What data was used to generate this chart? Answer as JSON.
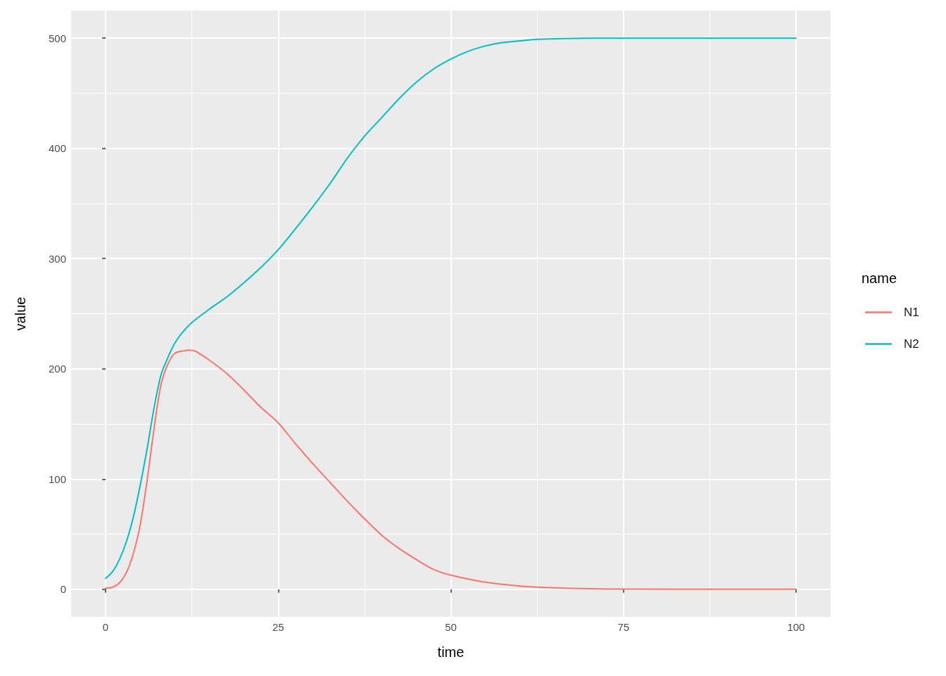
{
  "chart_data": {
    "type": "line",
    "xlabel": "time",
    "ylabel": "value",
    "legend_title": "name",
    "series": [
      {
        "name": "N1",
        "color": "#f8766d",
        "x": [
          0,
          1,
          2,
          3,
          4,
          5,
          6,
          7,
          8,
          9,
          10,
          11,
          12,
          13,
          15,
          17.5,
          20,
          22.5,
          25,
          27.5,
          30,
          32.5,
          35,
          37.5,
          40,
          42.5,
          45,
          47.5,
          50,
          55,
          60,
          65,
          70,
          75,
          87.5,
          100
        ],
        "values": [
          1,
          1.8,
          5.8,
          15,
          32,
          58,
          98,
          145,
          185,
          204,
          214,
          216,
          217,
          216,
          208,
          196,
          181,
          165,
          151,
          132,
          114,
          97,
          80,
          64,
          49,
          37,
          27,
          18,
          12.8,
          6.4,
          3,
          1.3,
          0.5,
          0.2,
          0,
          0
        ]
      },
      {
        "name": "N2",
        "color": "#00bfc4",
        "x": [
          0,
          1,
          2,
          3,
          4,
          5,
          6,
          7,
          8,
          9,
          10,
          11,
          12.5,
          15,
          17.5,
          20,
          22.5,
          25,
          27.5,
          30,
          32.5,
          35,
          37.5,
          40,
          42.5,
          45,
          47.5,
          50,
          52.5,
          55,
          57.5,
          60,
          62.5,
          70,
          75,
          87.5,
          100
        ],
        "values": [
          10,
          16,
          27,
          43,
          65,
          94,
          127,
          164,
          194,
          210,
          223,
          232,
          242,
          254,
          265,
          278,
          292,
          308,
          327,
          347,
          368,
          391,
          411,
          428,
          445,
          460,
          472,
          481,
          488,
          493,
          496,
          497.5,
          499,
          500,
          500,
          500,
          500
        ]
      }
    ],
    "xlim": [
      -5,
      105
    ],
    "xticks": [
      0,
      25,
      50,
      75,
      100
    ],
    "ylim": [
      -25,
      525
    ],
    "yticks": [
      0,
      100,
      200,
      300,
      400,
      500
    ],
    "grid": true,
    "legend": "right"
  }
}
